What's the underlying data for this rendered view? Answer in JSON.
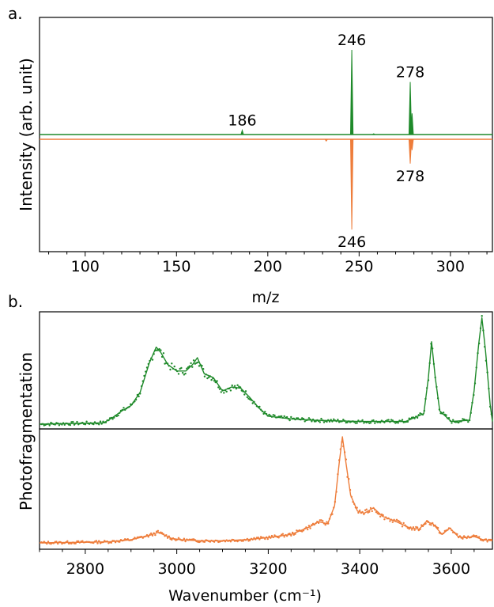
{
  "panels": {
    "a": {
      "label": "a."
    },
    "b": {
      "label": "b."
    }
  },
  "colors": {
    "green": "#1f8a2a",
    "orange": "#ee7d3b"
  },
  "chart_data": [
    {
      "id": "ms",
      "type": "line",
      "xlabel": "m/z",
      "ylabel": "Intensity (arb. unit)",
      "xlim": [
        75,
        323
      ],
      "xticks": [
        "100",
        "150",
        "200",
        "250",
        "300"
      ],
      "xtick_values": [
        100,
        150,
        200,
        250,
        300
      ],
      "series": [
        {
          "color": "green",
          "direction": "up",
          "peaks": [
            [
              186,
              0.05
            ],
            [
              246,
              1.0
            ],
            [
              258,
              0.01
            ],
            [
              278,
              0.62
            ],
            [
              279,
              0.25
            ]
          ]
        },
        {
          "color": "orange",
          "direction": "down",
          "peaks": [
            [
              232,
              0.02
            ],
            [
              246,
              1.0
            ],
            [
              278,
              0.27
            ],
            [
              279,
              0.12
            ]
          ]
        }
      ],
      "annotations": [
        {
          "text": "246",
          "x": 246,
          "series": "green"
        },
        {
          "text": "278",
          "x": 278,
          "series": "green"
        },
        {
          "text": "186",
          "x": 186,
          "series": "green"
        },
        {
          "text": "278",
          "x": 278,
          "series": "orange"
        },
        {
          "text": "246",
          "x": 246,
          "series": "orange"
        }
      ]
    },
    {
      "id": "ir",
      "type": "scatter",
      "xlabel": "Wavenumber (cm⁻¹)",
      "ylabel": "Photofragmentation",
      "xlim": [
        2700,
        3690
      ],
      "xticks": [
        "2800",
        "3000",
        "3200",
        "3400",
        "3600"
      ],
      "xtick_values": [
        2800,
        3000,
        3200,
        3400,
        3600
      ],
      "series": [
        {
          "color": "green",
          "panel": "top",
          "x": [
            2700,
            2840,
            2860,
            2880,
            2900,
            2920,
            2940,
            2955,
            2965,
            2980,
            3000,
            3020,
            3035,
            3045,
            3060,
            3080,
            3100,
            3120,
            3140,
            3160,
            3180,
            3200,
            3250,
            3300,
            3400,
            3500,
            3540,
            3550,
            3557,
            3565,
            3575,
            3600,
            3640,
            3650,
            3660,
            3667,
            3675,
            3685,
            3690
          ],
          "y": [
            0.0,
            0.01,
            0.05,
            0.1,
            0.14,
            0.24,
            0.46,
            0.58,
            0.54,
            0.45,
            0.4,
            0.4,
            0.45,
            0.5,
            0.38,
            0.35,
            0.25,
            0.28,
            0.27,
            0.2,
            0.12,
            0.06,
            0.04,
            0.03,
            0.02,
            0.02,
            0.08,
            0.35,
            0.62,
            0.35,
            0.1,
            0.02,
            0.03,
            0.25,
            0.6,
            0.8,
            0.55,
            0.15,
            0.02
          ]
        },
        {
          "color": "orange",
          "panel": "bottom",
          "x": [
            2700,
            2850,
            2900,
            2940,
            2960,
            2975,
            2990,
            3010,
            3050,
            3100,
            3150,
            3200,
            3250,
            3290,
            3310,
            3330,
            3345,
            3355,
            3362,
            3370,
            3380,
            3395,
            3410,
            3430,
            3450,
            3480,
            3510,
            3530,
            3545,
            3560,
            3580,
            3597,
            3615,
            3630,
            3650,
            3670,
            3690
          ],
          "y": [
            0.0,
            0.01,
            0.03,
            0.07,
            0.1,
            0.07,
            0.04,
            0.03,
            0.02,
            0.02,
            0.03,
            0.05,
            0.08,
            0.15,
            0.2,
            0.18,
            0.35,
            0.75,
            1.0,
            0.75,
            0.45,
            0.3,
            0.28,
            0.33,
            0.25,
            0.2,
            0.14,
            0.13,
            0.2,
            0.18,
            0.08,
            0.14,
            0.06,
            0.05,
            0.06,
            0.03,
            0.02
          ]
        }
      ]
    }
  ]
}
